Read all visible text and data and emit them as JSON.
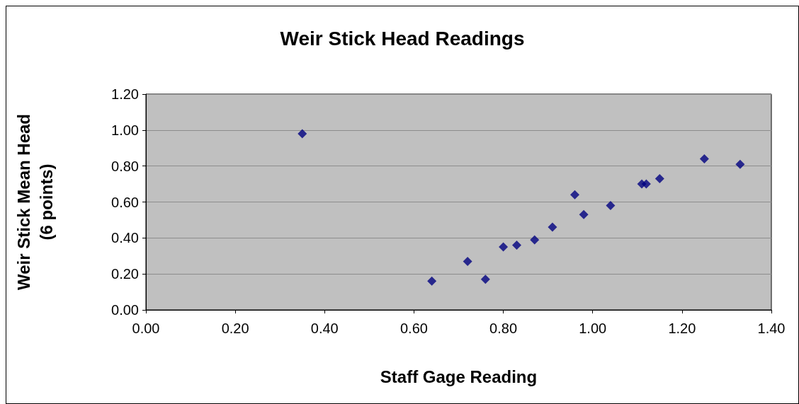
{
  "chart_data": {
    "type": "scatter",
    "title": "Weir Stick Head Readings",
    "xlabel": "Staff Gage Reading",
    "ylabel": "Weir Stick Mean Head\n(6 points)",
    "x": [
      0.35,
      0.64,
      0.72,
      0.76,
      0.8,
      0.83,
      0.87,
      0.91,
      0.96,
      0.98,
      1.04,
      1.11,
      1.12,
      1.15,
      1.25,
      1.33
    ],
    "values": [
      0.98,
      0.16,
      0.27,
      0.17,
      0.35,
      0.36,
      0.39,
      0.46,
      0.64,
      0.53,
      0.58,
      0.7,
      0.7,
      0.73,
      0.84,
      0.81
    ],
    "color": "#000080",
    "marker": "diamond",
    "xlim": [
      0,
      1.4
    ],
    "xticks": [
      {
        "value": 0,
        "label": "0.00"
      },
      {
        "value": 0.2,
        "label": "0.20"
      },
      {
        "value": 0.4,
        "label": "0.40"
      },
      {
        "value": 0.6,
        "label": "0.60"
      },
      {
        "value": 0.8,
        "label": "0.80"
      },
      {
        "value": 1,
        "label": "1.00"
      },
      {
        "value": 1.2,
        "label": "1.20"
      },
      {
        "value": 1.4,
        "label": "1.40"
      }
    ],
    "ylim": [
      0,
      1.2
    ],
    "yticks": [
      {
        "value": 0,
        "label": "0.00"
      },
      {
        "value": 0.2,
        "label": "0.20"
      },
      {
        "value": 0.4,
        "label": "0.40"
      },
      {
        "value": 0.6,
        "label": "0.60"
      },
      {
        "value": 0.8,
        "label": "0.80"
      },
      {
        "value": 1,
        "label": "1.00"
      },
      {
        "value": 1.2,
        "label": "1.20"
      }
    ],
    "grid": "y"
  }
}
